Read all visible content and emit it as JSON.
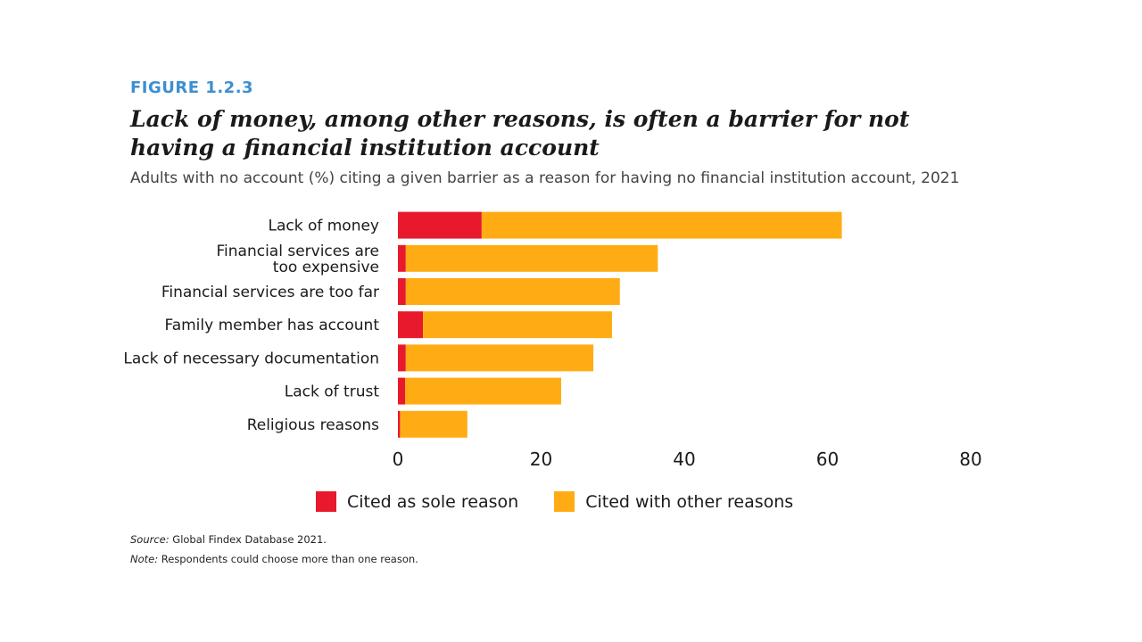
{
  "figure_label": "FIGURE 1.2.3",
  "title": "Lack of money, among other reasons, is often a barrier for not having a financial institution account",
  "subtitle": "Adults with no account (%) citing a given barrier as a reason for having no financial institution account, 2021",
  "source_label": "Source:",
  "source_text": " Global Findex Database 2021.",
  "note_label": "Note:",
  "note_text": " Respondents could choose more than one reason.",
  "colors": {
    "sole": "#e8192c",
    "other": "#ffac14"
  },
  "chart_data": {
    "type": "bar",
    "orientation": "horizontal",
    "stacked": true,
    "categories": [
      "Lack of money",
      "Financial services are too expensive",
      "Financial services are too far",
      "Family member has account",
      "Lack of necessary documentation",
      "Lack of trust",
      "Religious reasons"
    ],
    "category_label_lines": [
      [
        "Lack of money"
      ],
      [
        "Financial services are",
        "too expensive"
      ],
      [
        "Financial services are too far"
      ],
      [
        "Family member has account"
      ],
      [
        "Lack of necessary documentation"
      ],
      [
        "Lack of trust"
      ],
      [
        "Religious reasons"
      ]
    ],
    "series": [
      {
        "name": "Cited as sole reason",
        "color": "#e8192c",
        "values": [
          11.7,
          1.1,
          1.1,
          3.5,
          1.1,
          1.0,
          0.3
        ]
      },
      {
        "name": "Cited with other reasons",
        "color": "#ffac14",
        "values": [
          50.3,
          35.2,
          29.9,
          26.4,
          26.2,
          21.8,
          9.4
        ]
      }
    ],
    "xlim": [
      0,
      80
    ],
    "xticks": [
      0,
      20,
      40,
      60,
      80
    ],
    "legend_position": "bottom",
    "grid": false
  }
}
